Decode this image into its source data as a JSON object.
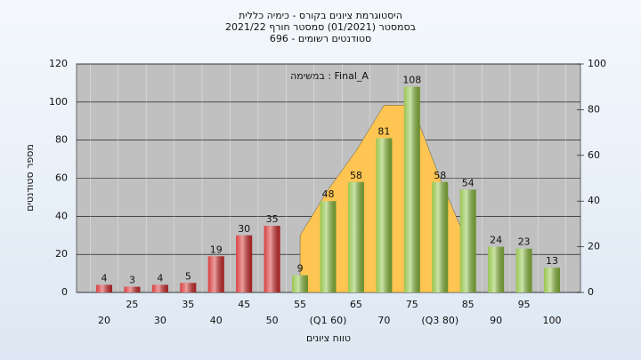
{
  "chart_data": {
    "type": "bar",
    "title": [
      "היסטוגרמת ציונים בקורס - כימיה כללית",
      "בסמסטר  (01/2021)  סמסטר חורף 2021/22",
      "סטודנטים רשומים - 696"
    ],
    "annotation": "במשימה : Final_A",
    "x_label": "טווח ציונים",
    "y_label": "מספר סטודנטים",
    "categories": [
      "20",
      "25",
      "30",
      "35",
      "40",
      "45",
      "50",
      "55",
      "(Q1 60)",
      "65",
      "70",
      "75",
      "(Q3 80)",
      "85",
      "90",
      "95",
      "100"
    ],
    "values": [
      4,
      3,
      4,
      5,
      19,
      30,
      35,
      9,
      48,
      58,
      81,
      108,
      58,
      54,
      24,
      23,
      13
    ],
    "colors": [
      "#d42a2a",
      "#d42a2a",
      "#d42a2a",
      "#d42a2a",
      "#d42a2a",
      "#d42a2a",
      "#d42a2a",
      "#8cbf3c",
      "#8cbf3c",
      "#8cbf3c",
      "#8cbf3c",
      "#8cbf3c",
      "#8cbf3c",
      "#8cbf3c",
      "#8cbf3c",
      "#8cbf3c",
      "#8cbf3c"
    ],
    "area": {
      "axis": "y2",
      "color": "#ffc552",
      "values": [
        null,
        null,
        null,
        null,
        null,
        null,
        null,
        25,
        45,
        62,
        82,
        82,
        50,
        21,
        null,
        null,
        null
      ]
    },
    "ylim": [
      0,
      120
    ],
    "yticks": [
      0,
      20,
      40,
      60,
      80,
      100,
      120
    ],
    "y2lim": [
      0,
      100
    ],
    "y2ticks": [
      0,
      20,
      40,
      60,
      80,
      100
    ],
    "grid": true
  }
}
